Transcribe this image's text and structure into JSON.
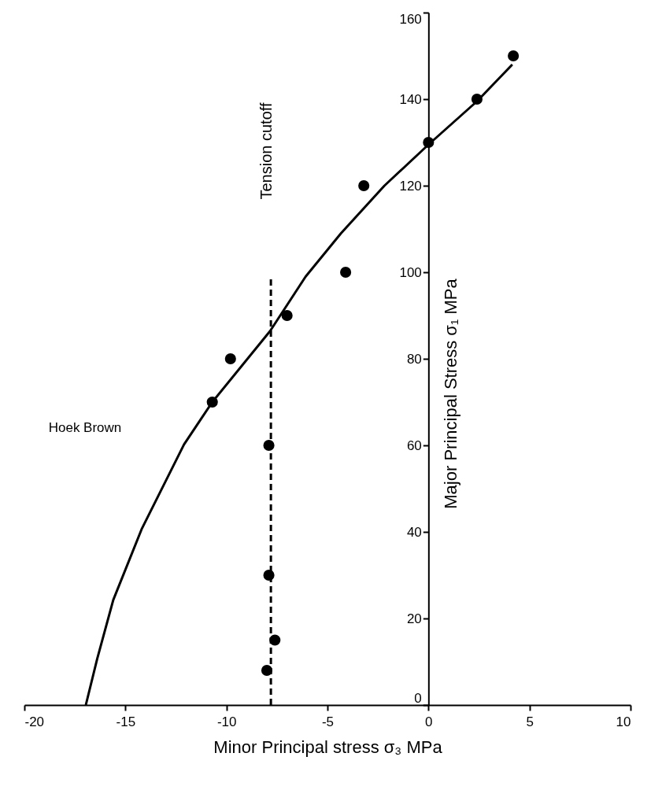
{
  "chart_data": {
    "type": "scatter",
    "xlabel": "Minor Principal stress σ₃ MPa",
    "ylabel": "Major Principal Stress σ₁ MPa",
    "xlim": [
      -20,
      10
    ],
    "ylim": [
      0,
      160
    ],
    "xticks": [
      -20,
      -15,
      -10,
      -5,
      0,
      5,
      10
    ],
    "yticks": [
      0,
      20,
      40,
      60,
      80,
      100,
      120,
      140,
      160
    ],
    "grid": false,
    "marker": "circle",
    "series": [
      {
        "type": "line",
        "color": "#000000",
        "line_style": "solid",
        "marker": "none",
        "x": [
          -16.96,
          -16.4,
          -15.6,
          -14.2,
          -12.1,
          -10.7,
          -7.84,
          -6.08,
          -4.33,
          -2.18,
          0,
          2.4,
          4.15
        ],
        "values": [
          0,
          10.6,
          24.3,
          40.6,
          60.2,
          70,
          86.4,
          99,
          109,
          120,
          129.5,
          139.5,
          148
        ]
      },
      {
        "type": "line",
        "color": "#000000",
        "line_style": "dashed",
        "marker": "none",
        "x": [
          -7.8,
          -7.8
        ],
        "values": [
          0,
          99
        ]
      },
      {
        "color": "#000000",
        "x": [
          -10.7,
          -9.8,
          -7.9,
          -7.9,
          -7.6,
          -8,
          -7,
          -4.1,
          -3.2,
          0,
          2.4,
          4.2
        ],
        "values": [
          70,
          80,
          60,
          30,
          15,
          8,
          90,
          100,
          120,
          130,
          140,
          150
        ]
      }
    ],
    "annotations": [
      "Hoek Brown",
      "Tension cutoff"
    ]
  }
}
